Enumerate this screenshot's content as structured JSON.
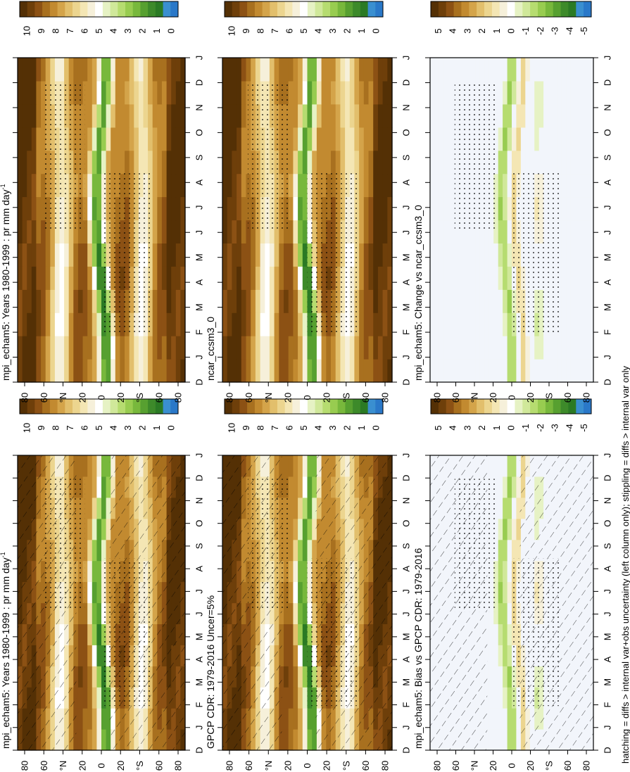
{
  "footnote": "hatching = diffs > internal var+obs uncertainty (left column only); stippling = diffs > internal var only",
  "month_labels": [
    "D",
    "J",
    "F",
    "M",
    "A",
    "M",
    "J",
    "J",
    "A",
    "S",
    "O",
    "N",
    "D",
    "J"
  ],
  "lat_labels": [
    "80",
    "60",
    "°N",
    "20",
    "0",
    "20",
    "°S",
    "60",
    "80"
  ],
  "abs_colorbar": {
    "colors": [
      "#543005",
      "#6e3f0a",
      "#8c5114",
      "#a8701f",
      "#c28a30",
      "#d4a44a",
      "#e2bf6c",
      "#ecd58f",
      "#f4e6b4",
      "#f6f0da",
      "#ffffff",
      "#e6f2c4",
      "#d0e89a",
      "#b6dc70",
      "#98cc50",
      "#78b83c",
      "#57a030",
      "#3d8a2a",
      "#2b7a24",
      "#3a8fd0",
      "#2a78c8"
    ],
    "tick_labels": [
      "10",
      "9",
      "8",
      "7",
      "6",
      "5",
      "4",
      "3",
      "2",
      "1",
      "0"
    ]
  },
  "diff_colorbar": {
    "colors": [
      "#543005",
      "#6e3f0a",
      "#8c5114",
      "#a8701f",
      "#c28a30",
      "#d4a44a",
      "#e2bf6c",
      "#ecd58f",
      "#f4e6b4",
      "#f6f0da",
      "#ffffff",
      "#e6f2c4",
      "#d0e89a",
      "#b6dc70",
      "#98cc50",
      "#78b83c",
      "#57a030",
      "#3d8a2a",
      "#2b7a24",
      "#3a8fd0",
      "#2a78c8"
    ],
    "tick_labels": [
      "5",
      "4",
      "3",
      "2",
      "1",
      "0",
      "-1",
      "-2",
      "-3",
      "-4",
      "-5"
    ]
  },
  "chart_data": [
    {
      "type": "heatmap",
      "title": "mpi_echam5: Years 1980-1999 : pr mm day",
      "title_superscript": "-1",
      "xlabel": "",
      "ylabel": "",
      "panel": "top-left",
      "x_categories": [
        "D",
        "J",
        "F",
        "M",
        "A",
        "M",
        "J",
        "J",
        "A",
        "S",
        "O",
        "N",
        "D",
        "J"
      ],
      "y_range": [
        -90,
        90
      ],
      "colorbar_range": [
        0,
        10
      ],
      "hatching": true,
      "stippling": true
    },
    {
      "type": "heatmap",
      "title": "mpi_echam5: Years 1980-1999 : pr mm day",
      "title_superscript": "-1",
      "xlabel": "",
      "ylabel": "",
      "panel": "top-right",
      "x_categories": [
        "D",
        "J",
        "F",
        "M",
        "A",
        "M",
        "J",
        "J",
        "A",
        "S",
        "O",
        "N",
        "D",
        "J"
      ],
      "y_range": [
        -90,
        90
      ],
      "colorbar_range": [
        0,
        10
      ],
      "hatching": false,
      "stippling": true
    },
    {
      "type": "heatmap",
      "title": "GPCP CDR: 1979-2016 Uncer=5%",
      "xlabel": "",
      "ylabel": "",
      "panel": "middle-left",
      "x_categories": [
        "D",
        "J",
        "F",
        "M",
        "A",
        "M",
        "J",
        "J",
        "A",
        "S",
        "O",
        "N",
        "D",
        "J"
      ],
      "y_range": [
        -90,
        90
      ],
      "colorbar_range": [
        0,
        10
      ],
      "hatching": true,
      "stippling": true
    },
    {
      "type": "heatmap",
      "title": "ncar_ccsm3_0",
      "xlabel": "",
      "ylabel": "",
      "panel": "middle-right",
      "x_categories": [
        "D",
        "J",
        "F",
        "M",
        "A",
        "M",
        "J",
        "J",
        "A",
        "S",
        "O",
        "N",
        "D",
        "J"
      ],
      "y_range": [
        -90,
        90
      ],
      "colorbar_range": [
        0,
        10
      ],
      "hatching": false,
      "stippling": true
    },
    {
      "type": "heatmap",
      "title": "mpi_echam5: Bias vs GPCP CDR: 1979-2016",
      "xlabel": "",
      "ylabel": "",
      "panel": "bottom-left",
      "x_categories": [
        "D",
        "J",
        "F",
        "M",
        "A",
        "M",
        "J",
        "J",
        "A",
        "S",
        "O",
        "N",
        "D",
        "J"
      ],
      "y_range": [
        -90,
        90
      ],
      "colorbar_range": [
        -5,
        5
      ],
      "hatching": true,
      "stippling": true
    },
    {
      "type": "heatmap",
      "title": "mpi_echam5: Change vs ncar_ccsm3_0",
      "xlabel": "",
      "ylabel": "",
      "panel": "bottom-right",
      "x_categories": [
        "D",
        "J",
        "F",
        "M",
        "A",
        "M",
        "J",
        "J",
        "A",
        "S",
        "O",
        "N",
        "D",
        "J"
      ],
      "y_range": [
        -90,
        90
      ],
      "colorbar_range": [
        -5,
        5
      ],
      "hatching": false,
      "stippling": true
    }
  ]
}
